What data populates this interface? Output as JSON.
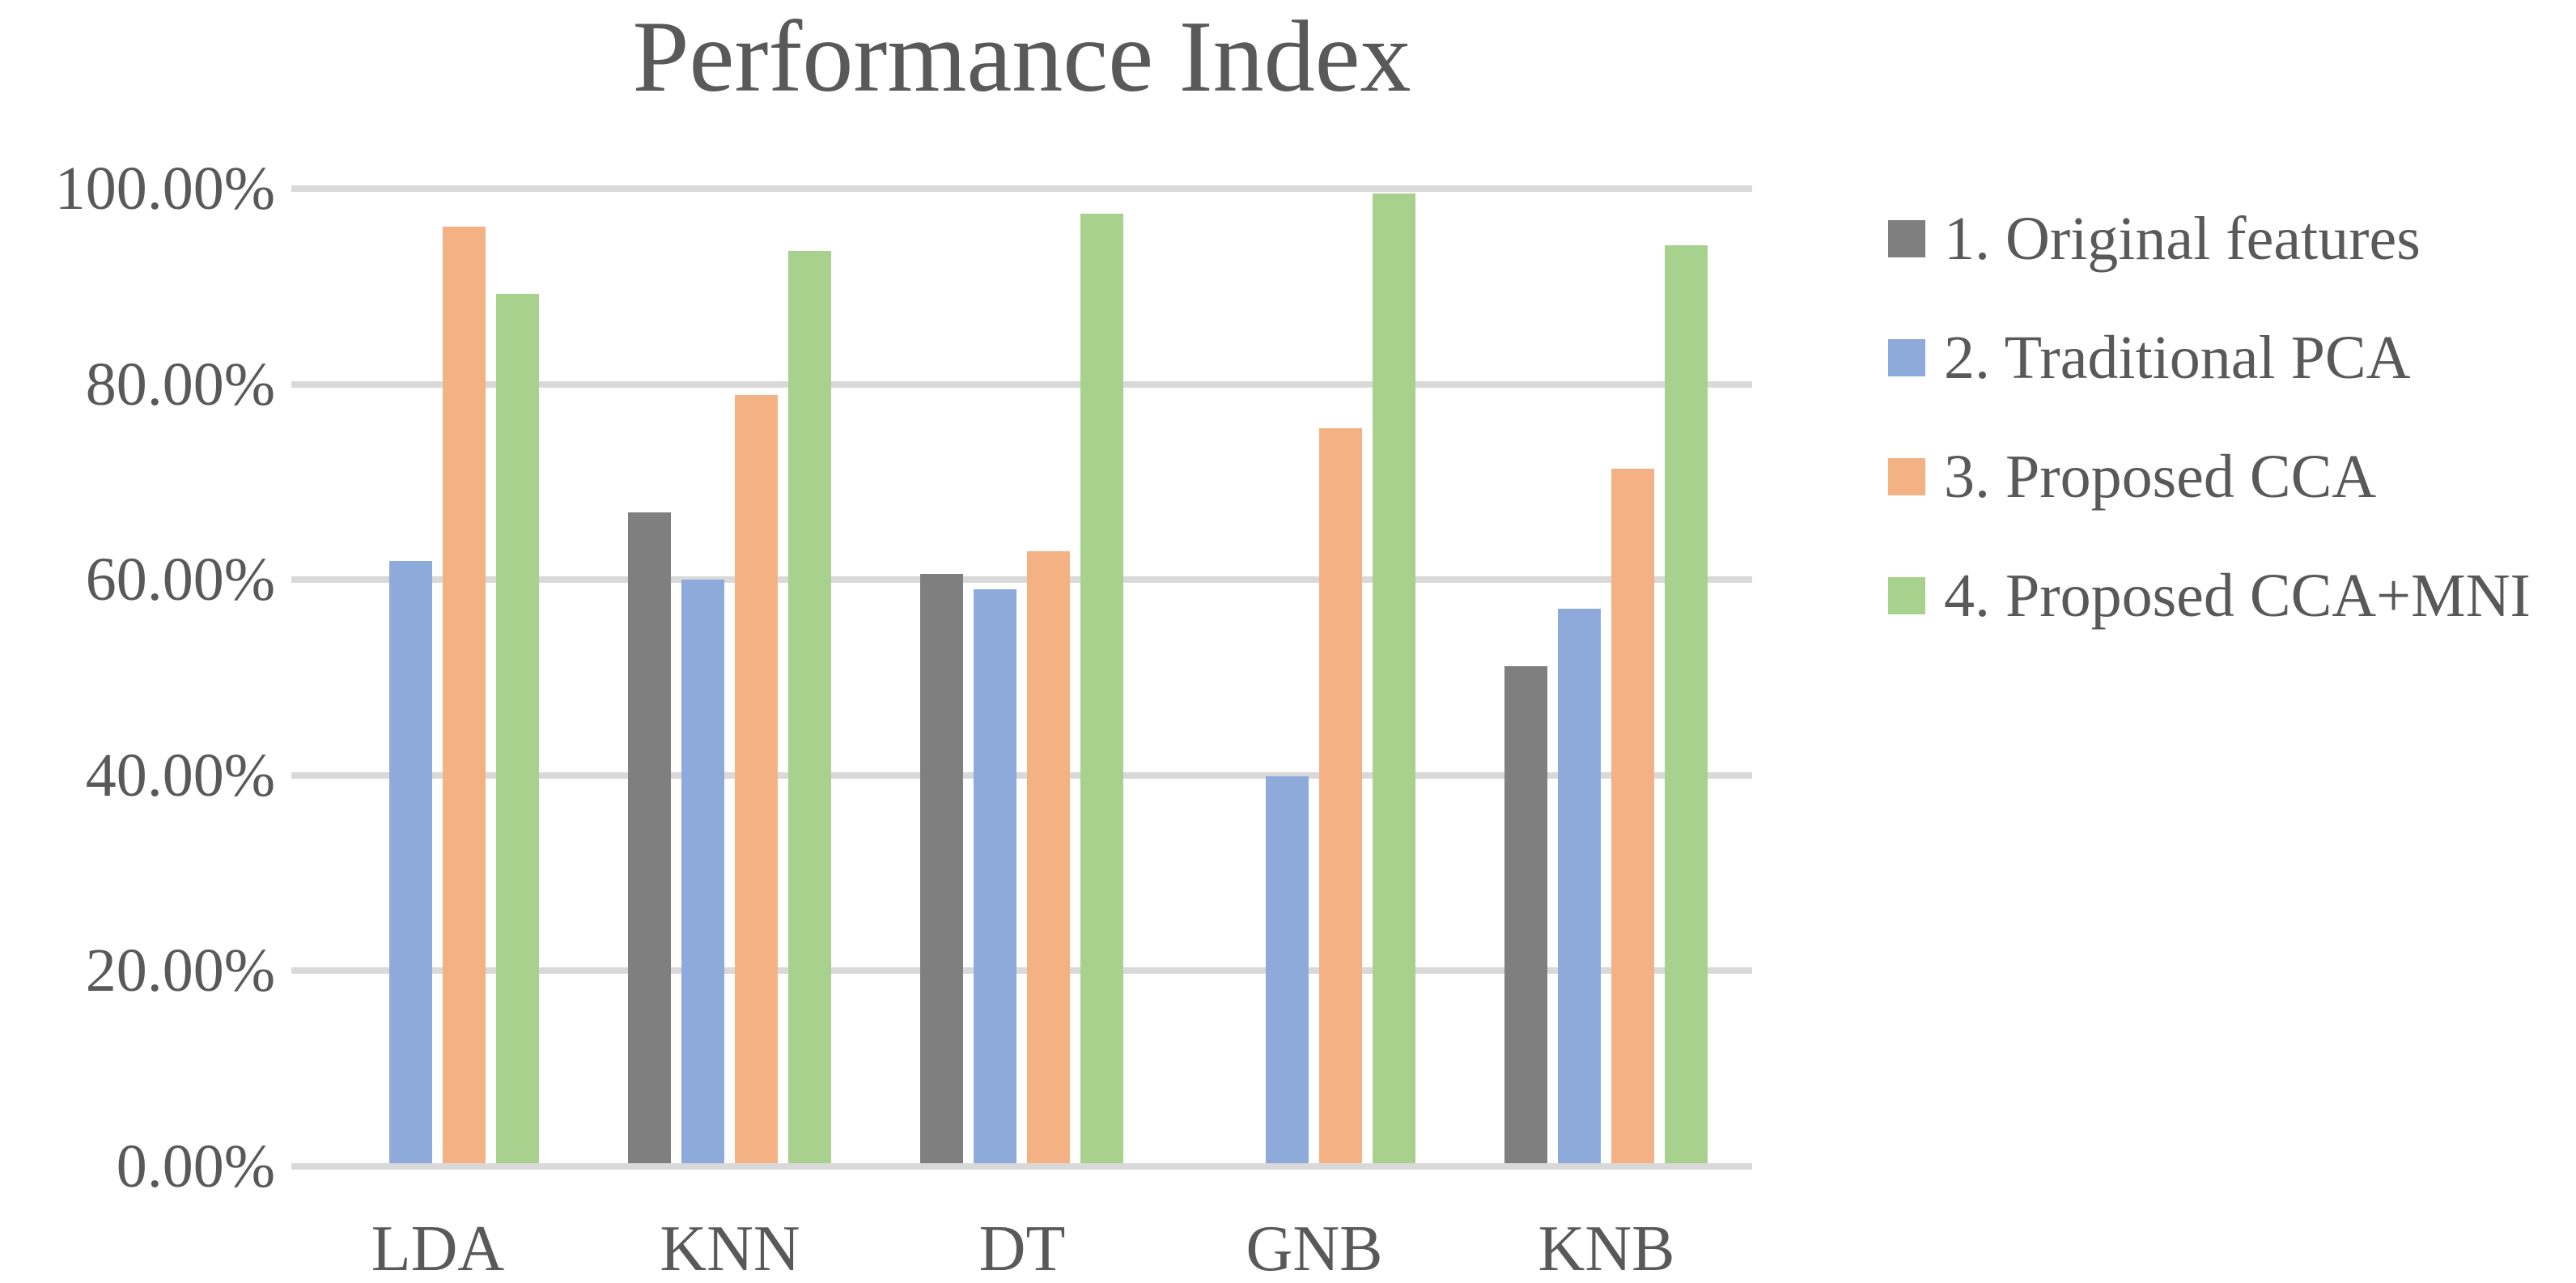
{
  "title": "Performance Index",
  "colors": {
    "text": "#595959",
    "gridline": "#D9D9D9",
    "background": "#FFFFFF",
    "series_gray": "#7F7F7F",
    "series_blue": "#8EAADB",
    "series_orange": "#F4B183",
    "series_green": "#A9D18E"
  },
  "chart_data": {
    "type": "bar",
    "title": "Performance Index",
    "categories": [
      "LDA",
      "KNN",
      "DT",
      "GNB",
      "KNB"
    ],
    "series": [
      {
        "name": "1. Original features",
        "color": "#7F7F7F",
        "values": [
          null,
          66.8,
          60.5,
          null,
          51.0
        ]
      },
      {
        "name": "2. Traditional PCA",
        "color": "#8EAADB",
        "values": [
          61.8,
          59.9,
          58.9,
          39.7,
          56.9
        ]
      },
      {
        "name": "3. Proposed CCA",
        "color": "#F4B183",
        "values": [
          96.1,
          78.8,
          62.8,
          75.4,
          71.3
        ]
      },
      {
        "name": "4. Proposed CCA+MNI",
        "color": "#A9D18E",
        "values": [
          89.2,
          93.6,
          97.4,
          99.5,
          94.2
        ]
      }
    ],
    "y_ticks": [
      "100.00%",
      "80.00%",
      "60.00%",
      "40.00%",
      "20.00%",
      "0.00%"
    ],
    "y_tick_values": [
      100,
      80,
      60,
      40,
      20,
      0
    ],
    "ylim": [
      0,
      100
    ],
    "unit": "percent",
    "grid": true,
    "legend_position": "right",
    "xlabel": "",
    "ylabel": ""
  }
}
